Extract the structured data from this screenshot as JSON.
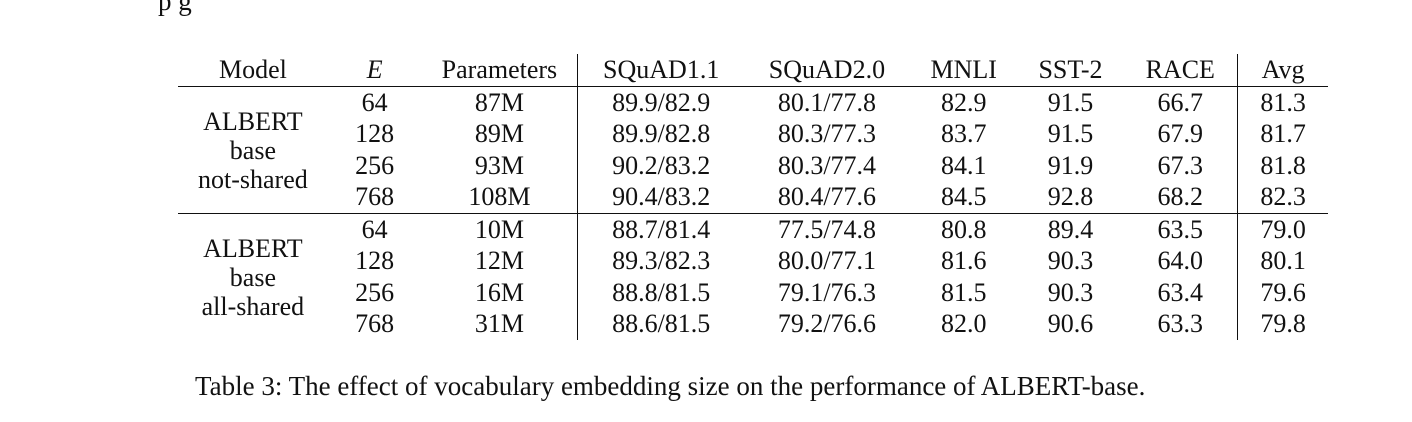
{
  "top_snippet": "p                        g",
  "table": {
    "headers": {
      "model": "Model",
      "e": "E",
      "parameters": "Parameters",
      "squad11": "SQuAD1.1",
      "squad20": "SQuAD2.0",
      "mnli": "MNLI",
      "sst2": "SST-2",
      "race": "RACE",
      "avg": "Avg"
    },
    "groups": [
      {
        "model_lines": [
          "ALBERT",
          "base",
          "not-shared"
        ],
        "rows": [
          {
            "e": "64",
            "params": "87M",
            "squad11": "89.9/82.9",
            "squad20": "80.1/77.8",
            "mnli": "82.9",
            "sst2": "91.5",
            "race": "66.7",
            "avg": "81.3"
          },
          {
            "e": "128",
            "params": "89M",
            "squad11": "89.9/82.8",
            "squad20": "80.3/77.3",
            "mnli": "83.7",
            "sst2": "91.5",
            "race": "67.9",
            "avg": "81.7"
          },
          {
            "e": "256",
            "params": "93M",
            "squad11": "90.2/83.2",
            "squad20": "80.3/77.4",
            "mnli": "84.1",
            "sst2": "91.9",
            "race": "67.3",
            "avg": "81.8"
          },
          {
            "e": "768",
            "params": "108M",
            "squad11": "90.4/83.2",
            "squad20": "80.4/77.6",
            "mnli": "84.5",
            "sst2": "92.8",
            "race": "68.2",
            "avg": "82.3"
          }
        ]
      },
      {
        "model_lines": [
          "ALBERT",
          "base",
          "all-shared"
        ],
        "rows": [
          {
            "e": "64",
            "params": "10M",
            "squad11": "88.7/81.4",
            "squad20": "77.5/74.8",
            "mnli": "80.8",
            "sst2": "89.4",
            "race": "63.5",
            "avg": "79.0"
          },
          {
            "e": "128",
            "params": "12M",
            "squad11": "89.3/82.3",
            "squad20": "80.0/77.1",
            "mnli": "81.6",
            "sst2": "90.3",
            "race": "64.0",
            "avg": "80.1"
          },
          {
            "e": "256",
            "params": "16M",
            "squad11": "88.8/81.5",
            "squad20": "79.1/76.3",
            "mnli": "81.5",
            "sst2": "90.3",
            "race": "63.4",
            "avg": "79.6"
          },
          {
            "e": "768",
            "params": "31M",
            "squad11": "88.6/81.5",
            "squad20": "79.2/76.6",
            "mnli": "82.0",
            "sst2": "90.6",
            "race": "63.3",
            "avg": "79.8"
          }
        ]
      }
    ]
  },
  "caption": "Table 3: The effect of vocabulary embedding size on the performance of ALBERT-base."
}
